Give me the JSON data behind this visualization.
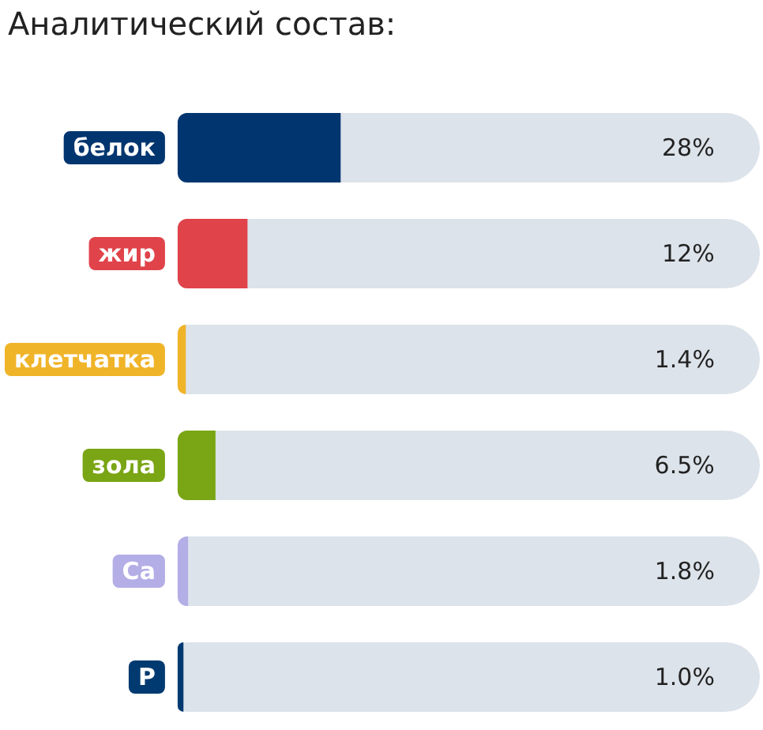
{
  "chart_data": {
    "type": "bar",
    "orientation": "horizontal",
    "title": "Аналитический состав:",
    "categories": [
      "белок",
      "жир",
      "клетчатка",
      "зола",
      "Ca",
      "P"
    ],
    "values": [
      28,
      12,
      1.4,
      6.5,
      1.8,
      1.0
    ],
    "colors": [
      "#00356f",
      "#e0434a",
      "#f0b429",
      "#7aa514",
      "#b3aee6",
      "#003a70"
    ],
    "value_labels": [
      "28%",
      "12%",
      "1.4%",
      "6.5%",
      "1.8%",
      "1.0%"
    ],
    "xlim": [
      0,
      100
    ],
    "tick_labels": "y",
    "grid": false
  }
}
